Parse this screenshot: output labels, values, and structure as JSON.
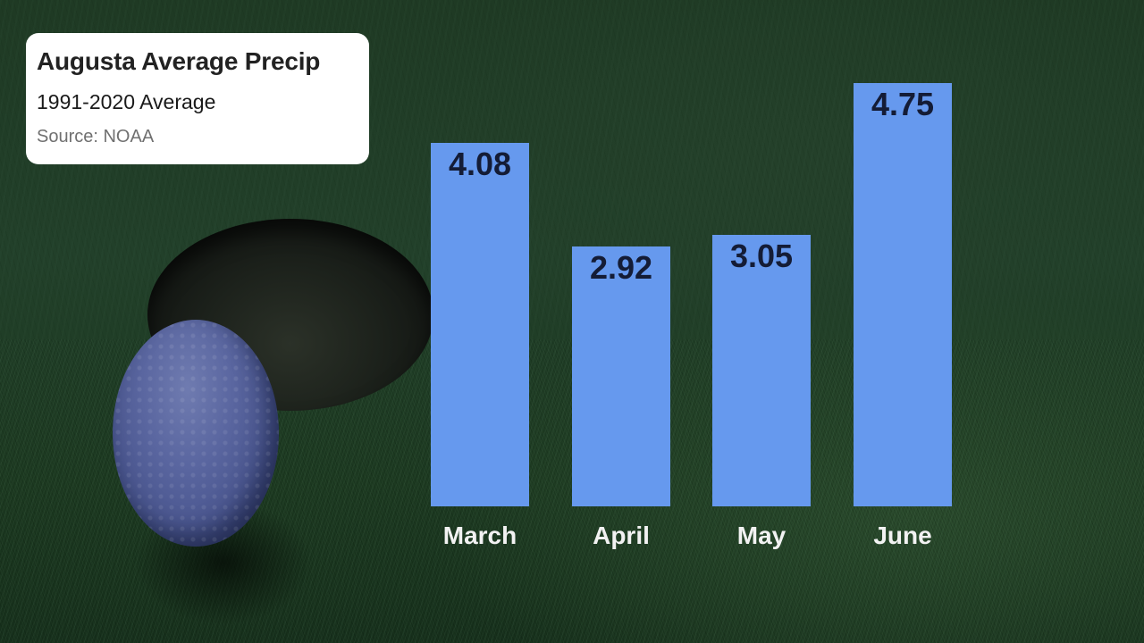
{
  "card": {
    "title": "Augusta Average Precip",
    "subtitle": "1991-2020 Average",
    "source": "Source: NOAA"
  },
  "colors": {
    "bar": "#6699ee",
    "value_text": "#141c36",
    "label_text": "#f2f2f2",
    "background": "#1f3a24"
  },
  "chart_data": {
    "type": "bar",
    "title": "Augusta Average Precip",
    "subtitle": "1991-2020 Average",
    "source": "Source: NOAA",
    "categories": [
      "March",
      "April",
      "May",
      "June"
    ],
    "values": [
      4.08,
      2.92,
      3.05,
      4.75
    ],
    "value_labels": [
      "4.08",
      "2.92",
      "3.05",
      "4.75"
    ],
    "xlabel": "",
    "ylabel": "",
    "ylim": [
      0,
      4.75
    ],
    "grid": false,
    "legend": "none",
    "data_labels": "inside top of bar"
  }
}
